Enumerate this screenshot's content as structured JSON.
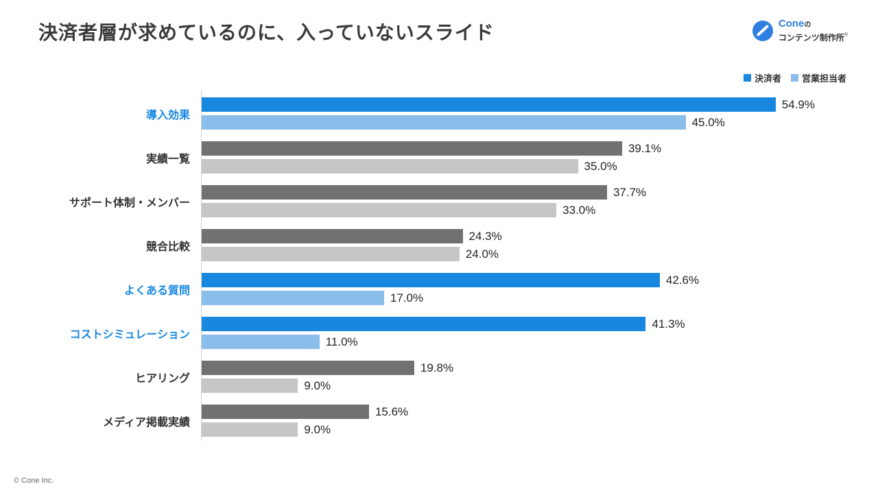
{
  "header": {
    "title": "決済者層が求めているのに、入っていないスライド",
    "logo": {
      "brand": "Cone",
      "particle": "の",
      "subtitle": "コンテンツ制作所",
      "registered_mark": "®"
    }
  },
  "legend": {
    "items": [
      {
        "label": "決済者",
        "color": "#1787E0"
      },
      {
        "label": "営業担当者",
        "color": "#8ABDEA"
      }
    ]
  },
  "colors": {
    "accent_dark": "#1787E0",
    "accent_light": "#8ABDEA",
    "gray_dark": "#717171",
    "gray_light": "#C6C6C6",
    "axis": "#C9D2D9",
    "highlight_label": "#1787E0",
    "text": "#333333"
  },
  "chart_data": {
    "type": "bar",
    "orientation": "horizontal",
    "title": "決済者層が求めているのに、入っていないスライド",
    "categories": [
      "導入効果",
      "実績一覧",
      "サポート体制・メンバー",
      "競合比較",
      "よくある質問",
      "コストシミュレーション",
      "ヒアリング",
      "メディア掲載実績"
    ],
    "highlighted": [
      true,
      false,
      false,
      false,
      true,
      true,
      false,
      false
    ],
    "series": [
      {
        "name": "決済者",
        "values": [
          54.9,
          39.1,
          37.7,
          24.3,
          42.6,
          41.3,
          19.8,
          15.6
        ]
      },
      {
        "name": "営業担当者",
        "values": [
          45.0,
          35.0,
          33.0,
          24.0,
          17.0,
          11.0,
          9.0,
          9.0
        ]
      }
    ],
    "value_suffix": "%",
    "xlim": [
      0,
      57
    ],
    "grid": false,
    "legend_position": "top-right"
  },
  "footer": {
    "copyright": "© Cone Inc."
  }
}
